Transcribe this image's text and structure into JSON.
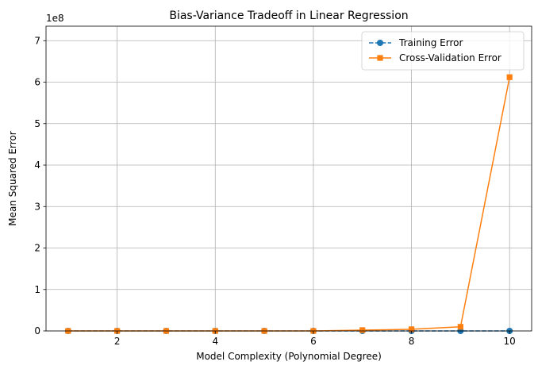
{
  "chart_data": {
    "type": "line",
    "title": "Bias-Variance Tradeoff in Linear Regression",
    "xlabel": "Model Complexity (Polynomial Degree)",
    "ylabel": "Mean Squared Error",
    "y_offset_label": "1e8",
    "xlim": [
      0.55,
      10.45
    ],
    "ylim": [
      0,
      7.35
    ],
    "xticks": [
      2,
      4,
      6,
      8,
      10
    ],
    "yticks": [
      0,
      1,
      2,
      3,
      4,
      5,
      6,
      7
    ],
    "grid": true,
    "legend_position": "top-right",
    "x": [
      1,
      2,
      3,
      4,
      5,
      6,
      7,
      8,
      9,
      10
    ],
    "series": [
      {
        "name": "Training Error",
        "color": "#1f77b4",
        "line_style": "dashed",
        "marker": "circle",
        "values": [
          0,
          0,
          0,
          0,
          0,
          0,
          0,
          0,
          0,
          0
        ]
      },
      {
        "name": "Cross-Validation Error",
        "color": "#ff7f0e",
        "line_style": "solid",
        "marker": "square",
        "values": [
          0,
          0,
          0,
          0,
          0,
          0,
          0.02,
          0.04,
          0.1,
          6.12
        ]
      }
    ]
  }
}
